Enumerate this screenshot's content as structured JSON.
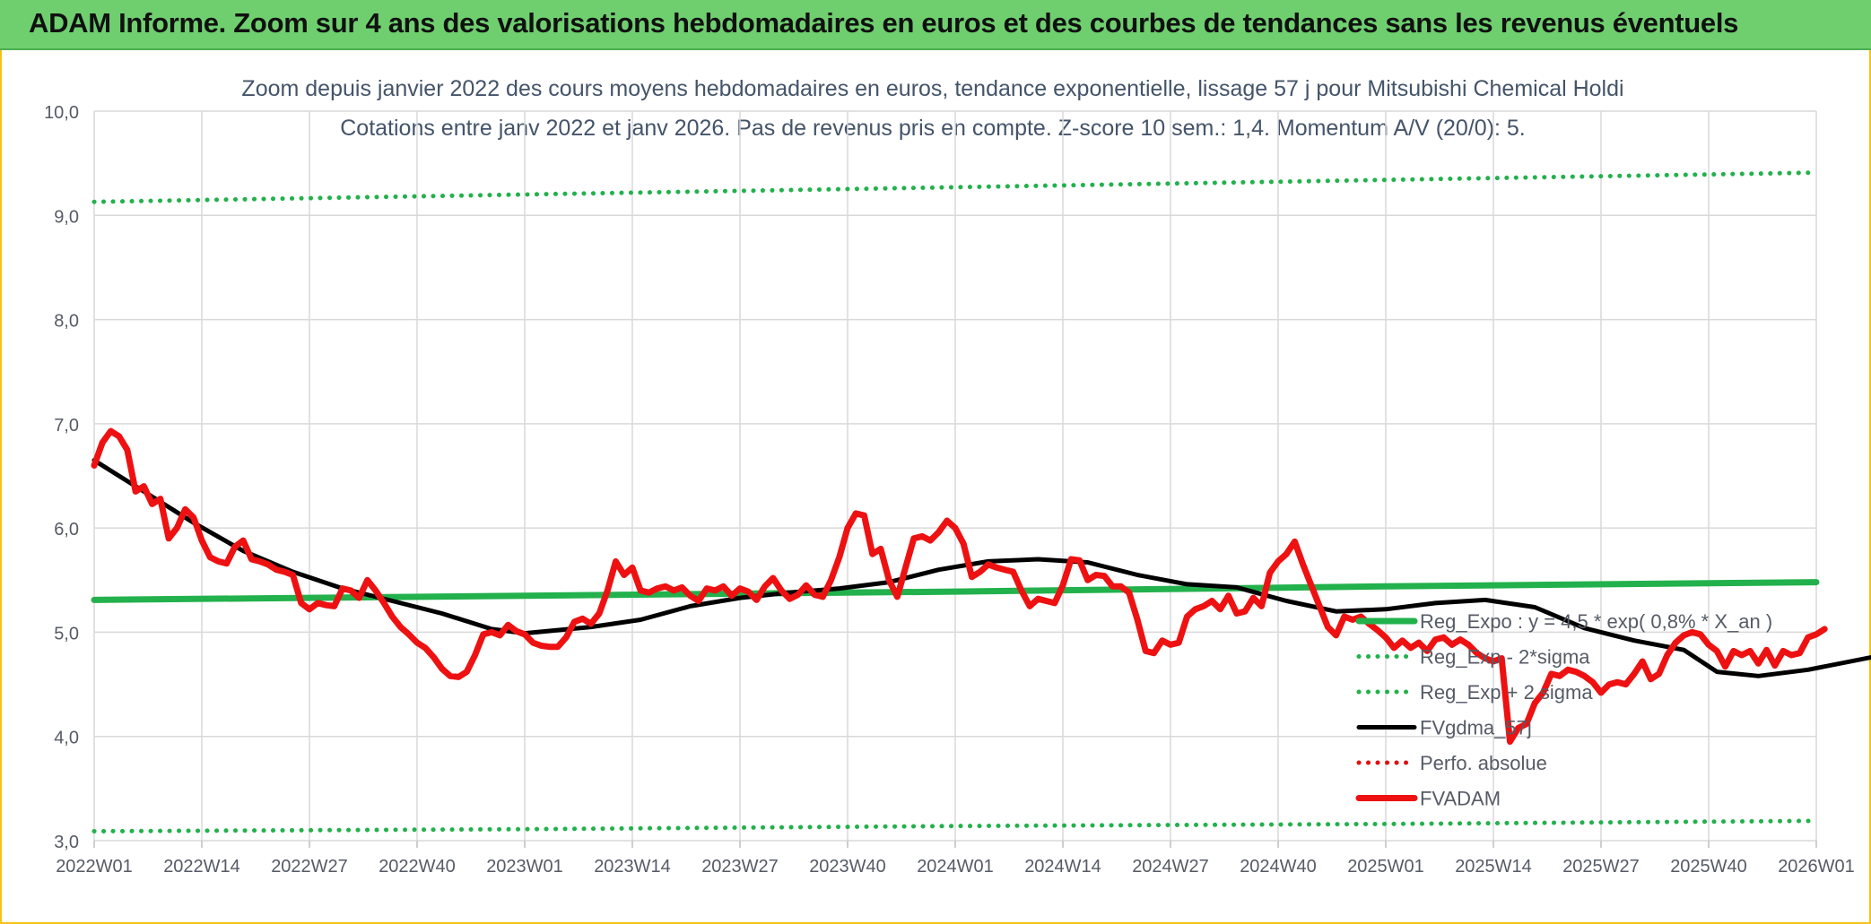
{
  "banner": {
    "title": "ADAM Informe. Zoom sur 4 ans des valorisations hebdomadaires en euros et des courbes de tendances sans les revenus éventuels"
  },
  "colors": {
    "banner_bg": "#6fcf6f",
    "trend_green": "#22b14c",
    "price_red": "#ee1111",
    "smooth_black": "#000000",
    "perf_red_dotted": "#dd1111",
    "grid": "#d9d9d9",
    "axis_text": "#555b66"
  },
  "chart_data": {
    "type": "line",
    "title": "Zoom depuis janvier 2022 des cours moyens hebdomadaires en euros, tendance exponentielle, lissage 57 j pour Mitsubishi Chemical Holdi",
    "subtitle": "Cotations entre janv 2022 et janv 2026. Pas de revenus pris en compte. Z-score 10 sem.: 1,4. Momentum A/V (20/0): 5.",
    "xlabel": "",
    "ylabel": "",
    "ylim": [
      3.0,
      10.0
    ],
    "yticks": [
      "3,0",
      "4,0",
      "5,0",
      "6,0",
      "7,0",
      "8,0",
      "9,0",
      "10,0"
    ],
    "xticks": [
      "2022W01",
      "2022W14",
      "2022W27",
      "2022W40",
      "2023W01",
      "2023W14",
      "2023W27",
      "2023W40",
      "2024W01",
      "2024W14",
      "2024W27",
      "2024W40",
      "2025W01",
      "2025W14",
      "2025W27",
      "2025W40",
      "2026W01"
    ],
    "grid": true,
    "legend_position": "bottom-right",
    "series": [
      {
        "name": "Reg_Expo : y = 4,5 * exp( 0,8% * X_an )",
        "style": "solid-thick",
        "color": "#22b14c",
        "points": [
          [
            0,
            5.31
          ],
          [
            52,
            5.35
          ],
          [
            104,
            5.39
          ],
          [
            156,
            5.44
          ],
          [
            208,
            5.48
          ]
        ]
      },
      {
        "name": "Reg_Exp - 2*sigma",
        "style": "dotted",
        "color": "#22b14c",
        "points": [
          [
            0,
            3.09
          ],
          [
            52,
            3.11
          ],
          [
            104,
            3.14
          ],
          [
            156,
            3.16
          ],
          [
            208,
            3.19
          ]
        ]
      },
      {
        "name": "Reg_Exp + 2 sigma",
        "style": "dotted",
        "color": "#22b14c",
        "points": [
          [
            0,
            9.13
          ],
          [
            52,
            9.2
          ],
          [
            104,
            9.27
          ],
          [
            156,
            9.34
          ],
          [
            208,
            9.41
          ]
        ]
      },
      {
        "name": "FVgdma_57j",
        "style": "solid",
        "color": "#000000",
        "points": [
          [
            0,
            6.65
          ],
          [
            6,
            6.35
          ],
          [
            12,
            6.05
          ],
          [
            18,
            5.78
          ],
          [
            24,
            5.58
          ],
          [
            30,
            5.42
          ],
          [
            36,
            5.3
          ],
          [
            42,
            5.18
          ],
          [
            48,
            5.03
          ],
          [
            52,
            4.99
          ],
          [
            56,
            5.02
          ],
          [
            60,
            5.05
          ],
          [
            66,
            5.12
          ],
          [
            72,
            5.25
          ],
          [
            78,
            5.33
          ],
          [
            84,
            5.38
          ],
          [
            90,
            5.42
          ],
          [
            96,
            5.48
          ],
          [
            102,
            5.6
          ],
          [
            108,
            5.68
          ],
          [
            114,
            5.7
          ],
          [
            120,
            5.67
          ],
          [
            126,
            5.55
          ],
          [
            132,
            5.46
          ],
          [
            138,
            5.43
          ],
          [
            144,
            5.3
          ],
          [
            150,
            5.2
          ],
          [
            156,
            5.22
          ],
          [
            162,
            5.28
          ],
          [
            168,
            5.31
          ],
          [
            174,
            5.24
          ],
          [
            180,
            5.04
          ],
          [
            186,
            4.92
          ],
          [
            192,
            4.83
          ],
          [
            196,
            4.62
          ],
          [
            201,
            4.58
          ],
          [
            207,
            4.64
          ],
          [
            216,
            4.78
          ],
          [
            222,
            4.78
          ],
          [
            228,
            4.8
          ],
          [
            238,
            4.92
          ]
        ]
      },
      {
        "name": "Perfo. absolue",
        "style": "dotted",
        "color": "#dd1111",
        "points": []
      },
      {
        "name": "FVADAM",
        "style": "solid-thick",
        "color": "#ee1111",
        "points": [
          [
            0,
            6.6
          ],
          [
            1,
            6.82
          ],
          [
            2,
            6.93
          ],
          [
            3,
            6.88
          ],
          [
            4,
            6.75
          ],
          [
            5,
            6.35
          ],
          [
            6,
            6.4
          ],
          [
            7,
            6.23
          ],
          [
            8,
            6.28
          ],
          [
            9,
            5.9
          ],
          [
            10,
            6.0
          ],
          [
            11,
            6.18
          ],
          [
            12,
            6.1
          ],
          [
            13,
            5.88
          ],
          [
            14,
            5.72
          ],
          [
            15,
            5.68
          ],
          [
            16,
            5.66
          ],
          [
            17,
            5.82
          ],
          [
            18,
            5.88
          ],
          [
            19,
            5.7
          ],
          [
            20,
            5.68
          ],
          [
            21,
            5.65
          ],
          [
            22,
            5.6
          ],
          [
            23,
            5.58
          ],
          [
            24,
            5.55
          ],
          [
            25,
            5.28
          ],
          [
            26,
            5.22
          ],
          [
            27,
            5.28
          ],
          [
            28,
            5.26
          ],
          [
            29,
            5.25
          ],
          [
            30,
            5.42
          ],
          [
            31,
            5.4
          ],
          [
            32,
            5.33
          ],
          [
            33,
            5.5
          ],
          [
            34,
            5.4
          ],
          [
            35,
            5.28
          ],
          [
            36,
            5.15
          ],
          [
            37,
            5.05
          ],
          [
            38,
            4.98
          ],
          [
            39,
            4.9
          ],
          [
            40,
            4.85
          ],
          [
            41,
            4.76
          ],
          [
            42,
            4.65
          ],
          [
            43,
            4.58
          ],
          [
            44,
            4.57
          ],
          [
            45,
            4.62
          ],
          [
            46,
            4.78
          ],
          [
            47,
            4.98
          ],
          [
            48,
            5.0
          ],
          [
            49,
            4.97
          ],
          [
            50,
            5.07
          ],
          [
            51,
            5.01
          ],
          [
            52,
            4.98
          ],
          [
            53,
            4.9
          ],
          [
            54,
            4.87
          ],
          [
            55,
            4.86
          ],
          [
            56,
            4.86
          ],
          [
            57,
            4.95
          ],
          [
            58,
            5.1
          ],
          [
            59,
            5.13
          ],
          [
            60,
            5.08
          ],
          [
            61,
            5.18
          ],
          [
            62,
            5.4
          ],
          [
            63,
            5.68
          ],
          [
            64,
            5.55
          ],
          [
            65,
            5.62
          ],
          [
            66,
            5.4
          ],
          [
            67,
            5.38
          ],
          [
            68,
            5.42
          ],
          [
            69,
            5.44
          ],
          [
            70,
            5.4
          ],
          [
            71,
            5.43
          ],
          [
            72,
            5.35
          ],
          [
            73,
            5.3
          ],
          [
            74,
            5.42
          ],
          [
            75,
            5.4
          ],
          [
            76,
            5.44
          ],
          [
            77,
            5.35
          ],
          [
            78,
            5.42
          ],
          [
            79,
            5.39
          ],
          [
            80,
            5.31
          ],
          [
            81,
            5.44
          ],
          [
            82,
            5.52
          ],
          [
            83,
            5.4
          ],
          [
            84,
            5.32
          ],
          [
            85,
            5.36
          ],
          [
            86,
            5.45
          ],
          [
            87,
            5.36
          ],
          [
            88,
            5.34
          ],
          [
            89,
            5.5
          ],
          [
            90,
            5.72
          ],
          [
            91,
            6.0
          ],
          [
            92,
            6.14
          ],
          [
            93,
            6.12
          ],
          [
            94,
            5.75
          ],
          [
            95,
            5.8
          ],
          [
            96,
            5.5
          ],
          [
            97,
            5.34
          ],
          [
            98,
            5.62
          ],
          [
            99,
            5.9
          ],
          [
            100,
            5.92
          ],
          [
            101,
            5.88
          ],
          [
            102,
            5.96
          ],
          [
            103,
            6.07
          ],
          [
            104,
            6.0
          ],
          [
            105,
            5.85
          ],
          [
            106,
            5.53
          ],
          [
            107,
            5.58
          ],
          [
            108,
            5.65
          ],
          [
            109,
            5.62
          ],
          [
            110,
            5.6
          ],
          [
            111,
            5.58
          ],
          [
            112,
            5.4
          ],
          [
            113,
            5.25
          ],
          [
            114,
            5.32
          ],
          [
            115,
            5.3
          ],
          [
            116,
            5.28
          ],
          [
            117,
            5.45
          ],
          [
            118,
            5.7
          ],
          [
            119,
            5.69
          ],
          [
            120,
            5.5
          ],
          [
            121,
            5.55
          ],
          [
            122,
            5.54
          ],
          [
            123,
            5.44
          ],
          [
            124,
            5.44
          ],
          [
            125,
            5.38
          ],
          [
            126,
            5.12
          ],
          [
            127,
            4.82
          ],
          [
            128,
            4.8
          ],
          [
            129,
            4.92
          ],
          [
            130,
            4.88
          ],
          [
            131,
            4.9
          ],
          [
            132,
            5.15
          ],
          [
            133,
            5.22
          ],
          [
            134,
            5.25
          ],
          [
            135,
            5.3
          ],
          [
            136,
            5.22
          ],
          [
            137,
            5.35
          ],
          [
            138,
            5.18
          ],
          [
            139,
            5.2
          ],
          [
            140,
            5.33
          ],
          [
            141,
            5.25
          ],
          [
            142,
            5.57
          ],
          [
            143,
            5.68
          ],
          [
            144,
            5.75
          ],
          [
            145,
            5.87
          ],
          [
            146,
            5.65
          ],
          [
            147,
            5.45
          ],
          [
            148,
            5.25
          ],
          [
            149,
            5.05
          ],
          [
            150,
            4.97
          ],
          [
            151,
            5.15
          ],
          [
            152,
            5.12
          ],
          [
            153,
            5.15
          ],
          [
            154,
            5.08
          ],
          [
            155,
            5.02
          ],
          [
            156,
            4.95
          ],
          [
            157,
            4.85
          ],
          [
            158,
            4.92
          ],
          [
            159,
            4.85
          ],
          [
            160,
            4.9
          ],
          [
            161,
            4.82
          ],
          [
            162,
            4.93
          ],
          [
            163,
            4.95
          ],
          [
            164,
            4.88
          ],
          [
            165,
            4.93
          ],
          [
            166,
            4.88
          ],
          [
            167,
            4.8
          ],
          [
            168,
            4.75
          ],
          [
            169,
            4.72
          ],
          [
            170,
            4.75
          ],
          [
            171,
            3.95
          ],
          [
            172,
            4.08
          ],
          [
            173,
            4.12
          ],
          [
            174,
            4.32
          ],
          [
            175,
            4.42
          ],
          [
            176,
            4.6
          ],
          [
            177,
            4.58
          ],
          [
            178,
            4.64
          ],
          [
            179,
            4.62
          ],
          [
            180,
            4.58
          ],
          [
            181,
            4.52
          ],
          [
            182,
            4.42
          ],
          [
            183,
            4.5
          ],
          [
            184,
            4.52
          ],
          [
            185,
            4.5
          ],
          [
            186,
            4.6
          ],
          [
            187,
            4.72
          ],
          [
            188,
            4.55
          ],
          [
            189,
            4.6
          ],
          [
            190,
            4.78
          ],
          [
            191,
            4.9
          ],
          [
            192,
            4.97
          ],
          [
            193,
            5.0
          ],
          [
            194,
            4.98
          ],
          [
            195,
            4.88
          ],
          [
            196,
            4.82
          ],
          [
            197,
            4.67
          ],
          [
            198,
            4.82
          ],
          [
            199,
            4.78
          ],
          [
            200,
            4.82
          ],
          [
            201,
            4.7
          ],
          [
            202,
            4.83
          ],
          [
            203,
            4.68
          ],
          [
            204,
            4.82
          ],
          [
            205,
            4.78
          ],
          [
            206,
            4.8
          ],
          [
            207,
            4.95
          ],
          [
            208,
            4.98
          ],
          [
            209,
            5.03
          ]
        ]
      }
    ]
  }
}
